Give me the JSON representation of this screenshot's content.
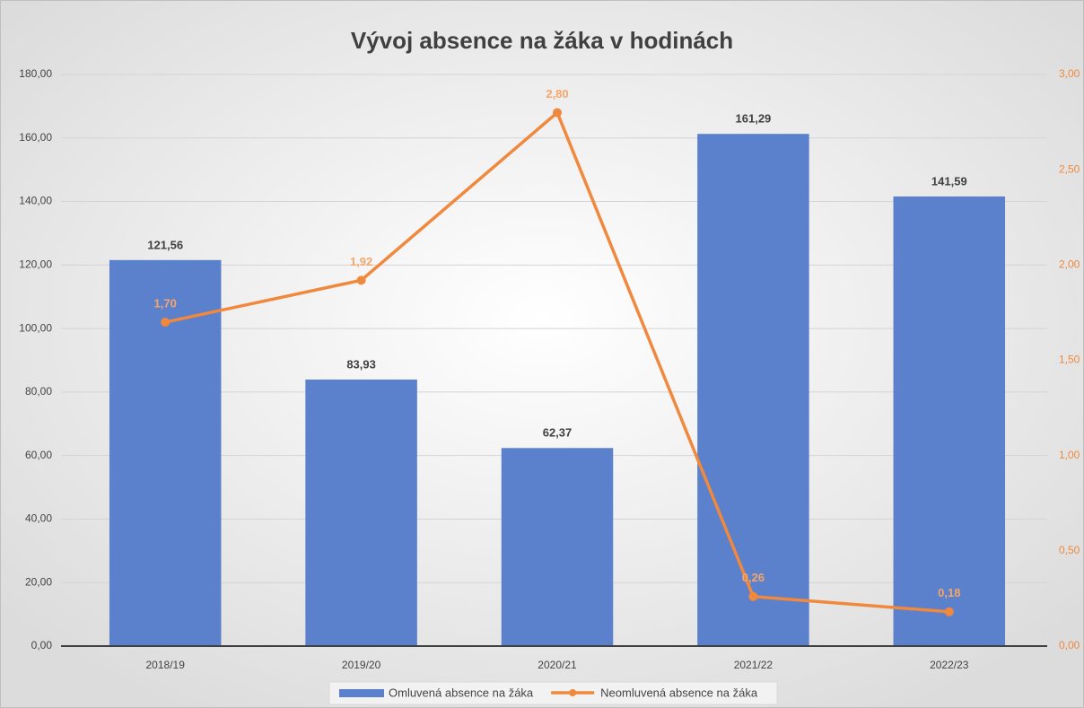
{
  "chart_data": {
    "type": "combo",
    "title": "Vývoj absence na žáka v hodinách",
    "categories": [
      "2018/19",
      "2019/20",
      "2020/21",
      "2021/22",
      "2022/23"
    ],
    "series": [
      {
        "name": "Omluvená absence na žáka",
        "type": "bar",
        "color": "#5b80cc",
        "axis": "y",
        "values": [
          121.56,
          83.93,
          62.37,
          161.29,
          141.59
        ],
        "value_labels": [
          "121,56",
          "83,93",
          "62,37",
          "161,29",
          "141,59"
        ]
      },
      {
        "name": "Neomluvená absence na žáka",
        "type": "line",
        "color": "#f0883e",
        "axis": "y2",
        "values": [
          1.7,
          1.92,
          2.8,
          0.26,
          0.18
        ],
        "value_labels": [
          "1,70",
          "1,92",
          "2,80",
          "0,26",
          "0,18"
        ]
      }
    ],
    "ylim": [
      0,
      180
    ],
    "yticks": [
      {
        "value": 0,
        "label": "0,00"
      },
      {
        "value": 20,
        "label": "20,00"
      },
      {
        "value": 40,
        "label": "40,00"
      },
      {
        "value": 60,
        "label": "60,00"
      },
      {
        "value": 80,
        "label": "80,00"
      },
      {
        "value": 100,
        "label": "100,00"
      },
      {
        "value": 120,
        "label": "120,00"
      },
      {
        "value": 140,
        "label": "140,00"
      },
      {
        "value": 160,
        "label": "160,00"
      },
      {
        "value": 180,
        "label": "180,00"
      }
    ],
    "y2lim": [
      0,
      3
    ],
    "y2ticks": [
      {
        "value": 0,
        "label": "0,00"
      },
      {
        "value": 0.5,
        "label": "0,50"
      },
      {
        "value": 1,
        "label": "1,00"
      },
      {
        "value": 1.5,
        "label": "1,50"
      },
      {
        "value": 2,
        "label": "2,00"
      },
      {
        "value": 2.5,
        "label": "2,50"
      },
      {
        "value": 3,
        "label": "3,00"
      }
    ],
    "grid": true,
    "legend": "bottom"
  }
}
